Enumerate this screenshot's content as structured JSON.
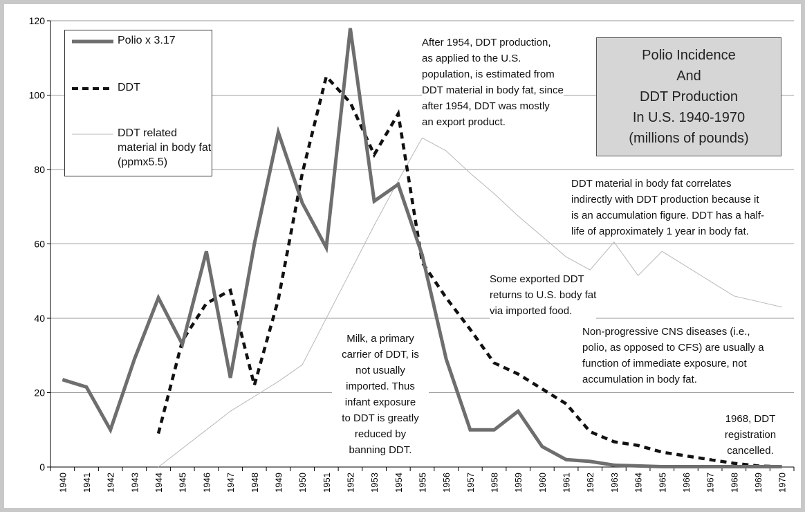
{
  "chart_data": {
    "type": "line",
    "title_lines": [
      "Polio Incidence",
      "And",
      "DDT Production",
      "In U.S. 1940-1970",
      "(millions of pounds)"
    ],
    "xlabel": "",
    "ylabel": "",
    "ylim": [
      0,
      120
    ],
    "yticks": [
      0,
      20,
      40,
      60,
      80,
      100,
      120
    ],
    "grid": true,
    "legend_position": "top-left",
    "categories": [
      "1940",
      "1941",
      "1942",
      "1943",
      "1944",
      "1945",
      "1946",
      "1947",
      "1948",
      "1949",
      "1950",
      "1951",
      "1952",
      "1953",
      "1954",
      "1955",
      "1956",
      "1957",
      "1958",
      "1959",
      "1960",
      "1961",
      "1962",
      "1963",
      "1964",
      "1965",
      "1966",
      "1967",
      "1968",
      "1969",
      "1970"
    ],
    "series": [
      {
        "name": "Polio x 3.17",
        "style": "solid-thick",
        "color": "#6e6e6e",
        "values": [
          23.5,
          21.5,
          10,
          29,
          45.5,
          33,
          58,
          24,
          60,
          90,
          71,
          59,
          118,
          71.5,
          76,
          57,
          29,
          10,
          10,
          15,
          5.5,
          2,
          1.5,
          0.5,
          0.3,
          0.1,
          0.1,
          0.1,
          0.1,
          0.1,
          0.1
        ]
      },
      {
        "name": "DDT",
        "style": "dashed",
        "color": "#111111",
        "values": [
          null,
          null,
          null,
          null,
          9,
          34,
          44,
          47.5,
          22,
          45,
          79,
          105,
          98,
          84,
          95,
          55,
          45.5,
          37,
          28,
          25,
          21,
          17,
          9.5,
          6.8,
          5.8,
          4,
          3,
          2,
          1,
          0.3,
          0.1
        ]
      },
      {
        "name": "DDT related material in body fat (ppmx5.5)",
        "style": "thin",
        "color": "#b8b8b8",
        "values": [
          null,
          null,
          null,
          null,
          0,
          5,
          10,
          15,
          19,
          23,
          27.5,
          40,
          52.5,
          65,
          77,
          88.5,
          85,
          79,
          73.5,
          67.5,
          62,
          56.5,
          53,
          60.5,
          51.5,
          58,
          54,
          50,
          46,
          44.5,
          43
        ]
      }
    ],
    "annotations": [
      {
        "id": "after1954",
        "lines": [
          "After 1954, DDT production,",
          "as applied to the U.S.",
          "population, is estimated from",
          "DDT material in body fat, since",
          "after 1954, DDT was mostly",
          "an export product."
        ]
      },
      {
        "id": "bodyfat",
        "lines": [
          "DDT material in body fat correlates",
          "indirectly with DDT production because it",
          "is an accumulation figure. DDT has a half-",
          "life of approximately 1 year in body fat."
        ]
      },
      {
        "id": "exported",
        "lines": [
          "Some exported DDT",
          "returns to U.S. body fat",
          "via imported food."
        ]
      },
      {
        "id": "nonprog",
        "lines": [
          "Non-progressive CNS diseases (i.e.,",
          "polio, as opposed to CFS) are usually a",
          "function of immediate exposure, not",
          "accumulation in body fat."
        ]
      },
      {
        "id": "milk",
        "lines": [
          "Milk, a primary",
          "carrier of DDT, is",
          "not usually",
          "imported. Thus",
          "infant exposure",
          "to DDT is greatly",
          "reduced by",
          "banning DDT."
        ]
      },
      {
        "id": "reg1968",
        "lines": [
          "1968, DDT",
          "registration",
          "cancelled."
        ]
      }
    ]
  }
}
